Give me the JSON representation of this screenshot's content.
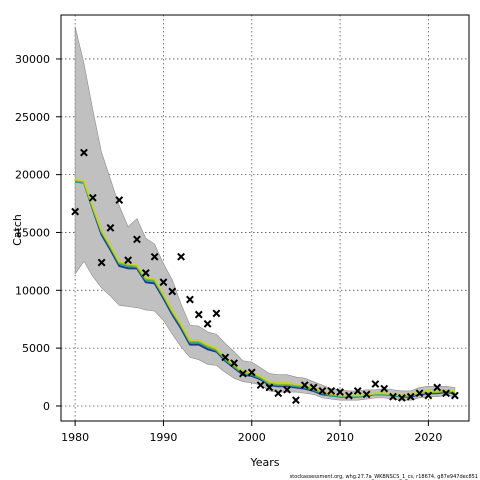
{
  "chart_data": {
    "type": "line",
    "xlabel": "Years",
    "ylabel": "Catch",
    "xlim": [
      1978.4,
      2024.6
    ],
    "ylim": [
      -1300,
      33800
    ],
    "xticks": [
      1980,
      1990,
      2000,
      2010,
      2020
    ],
    "yticks": [
      0,
      5000,
      10000,
      15000,
      20000,
      25000,
      30000
    ],
    "grid": true,
    "footer": "stockassessment.org, whg.27.7a_WKBNSCS_1_cs, r18674, g87e947dec851",
    "colors": {
      "band": "#c0c0c0",
      "band_edge": "#8c8c8c",
      "estimate_lines": [
        "#1f3c88",
        "#2a9d8f",
        "#8ab83a",
        "#c7d23a"
      ],
      "observed_marker": "#000000"
    },
    "x": [
      1980,
      1981,
      1982,
      1983,
      1984,
      1985,
      1986,
      1987,
      1988,
      1989,
      1990,
      1991,
      1992,
      1993,
      1994,
      1995,
      1996,
      1997,
      1998,
      1999,
      2000,
      2001,
      2002,
      2003,
      2004,
      2005,
      2006,
      2007,
      2008,
      2009,
      2010,
      2011,
      2012,
      2013,
      2014,
      2015,
      2016,
      2017,
      2018,
      2019,
      2020,
      2021,
      2022,
      2023
    ],
    "series": [
      {
        "values": [
          19400,
          19300,
          17000,
          14800,
          13500,
          12100,
          11900,
          11900,
          10700,
          10600,
          9300,
          7900,
          6700,
          5300,
          5300,
          4900,
          4700,
          3900,
          3300,
          2700,
          2600,
          2300,
          1800,
          1700,
          1700,
          1600,
          1500,
          1300,
          1000,
          900,
          800,
          800,
          800,
          900,
          1000,
          1000,
          900,
          800,
          800,
          1000,
          1100,
          1100,
          1200,
          1100
        ]
      },
      {
        "values": [
          19400,
          19300,
          17100,
          15000,
          13700,
          12300,
          12100,
          12000,
          10900,
          10800,
          9500,
          8100,
          6900,
          5500,
          5500,
          5100,
          4800,
          4000,
          3400,
          2800,
          2700,
          2400,
          1900,
          1800,
          1800,
          1700,
          1600,
          1400,
          1100,
          900,
          800,
          800,
          800,
          900,
          1000,
          1000,
          900,
          800,
          900,
          1100,
          1200,
          1200,
          1300,
          1200
        ]
      },
      {
        "values": [
          19500,
          19400,
          17200,
          15100,
          13800,
          12400,
          12200,
          12100,
          11000,
          10900,
          9600,
          8200,
          7000,
          5600,
          5600,
          5200,
          4900,
          4100,
          3500,
          2900,
          2800,
          2500,
          2000,
          1900,
          1900,
          1800,
          1700,
          1500,
          1200,
          1000,
          900,
          900,
          900,
          1000,
          1100,
          1100,
          1000,
          900,
          900,
          1100,
          1200,
          1200,
          1300,
          1200
        ]
      },
      {
        "values": [
          19600,
          19500,
          17300,
          15200,
          13900,
          12500,
          12300,
          12200,
          11100,
          11000,
          9700,
          8300,
          7100,
          5700,
          5700,
          5300,
          5000,
          4200,
          3600,
          3000,
          2900,
          2600,
          2100,
          2000,
          2000,
          1900,
          1800,
          1600,
          1300,
          1100,
          900,
          900,
          900,
          1000,
          1100,
          1100,
          1000,
          900,
          1000,
          1200,
          1300,
          1300,
          1400,
          1300
        ]
      }
    ],
    "band_lower": [
      11400,
      12500,
      11200,
      10200,
      9500,
      8700,
      8600,
      8500,
      8300,
      8200,
      7400,
      6200,
      5100,
      4200,
      4000,
      3600,
      3500,
      2900,
      2400,
      2100,
      2000,
      1800,
      1300,
      1200,
      1200,
      1200,
      1100,
      1000,
      700,
      600,
      500,
      500,
      500,
      600,
      700,
      700,
      600,
      500,
      500,
      700,
      800,
      800,
      900,
      800
    ],
    "band_upper": [
      32800,
      29600,
      25600,
      21900,
      19600,
      17300,
      15500,
      16200,
      14500,
      14000,
      12300,
      10900,
      8800,
      7000,
      6900,
      6400,
      6200,
      5400,
      4700,
      3900,
      3800,
      3300,
      2800,
      2700,
      2700,
      2500,
      2400,
      2100,
      1800,
      1500,
      1400,
      1300,
      1300,
      1400,
      1400,
      1500,
      1400,
      1300,
      1300,
      1600,
      1700,
      1700,
      1700,
      1600
    ],
    "observed": [
      16800,
      21900,
      18000,
      12400,
      15400,
      17800,
      12600,
      14400,
      11500,
      12900,
      10700,
      9900,
      12900,
      9200,
      7900,
      7100,
      8000,
      4200,
      3700,
      2800,
      2900,
      1800,
      1600,
      1100,
      1400,
      500,
      1800,
      1600,
      1300,
      1300,
      1200,
      900,
      1300,
      1000,
      1900,
      1500,
      800,
      700,
      800,
      1100,
      900,
      1600,
      1100,
      900
    ]
  }
}
